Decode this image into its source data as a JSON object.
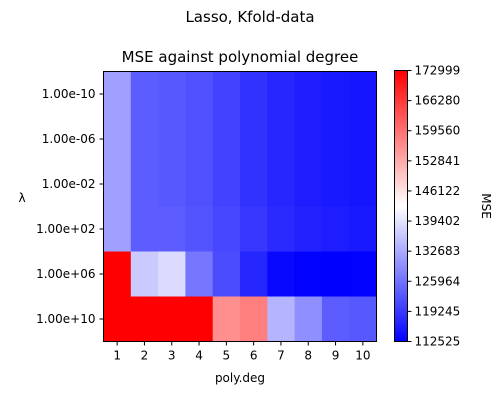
{
  "chart_data": {
    "type": "heatmap",
    "suptitle": "Lasso, Kfold-data",
    "title": "MSE against polynomial degree",
    "xlabel": "poly.deg",
    "ylabel": "λ",
    "x": [
      "1",
      "2",
      "3",
      "4",
      "5",
      "6",
      "7",
      "8",
      "9",
      "10"
    ],
    "y": [
      "1.00e-10",
      "1.00e-06",
      "1.00e-02",
      "1.00e+02",
      "1.00e+06",
      "1.00e+10"
    ],
    "values": [
      [
        131500,
        123500,
        123000,
        122000,
        120500,
        118500,
        117000,
        116000,
        115500,
        115000
      ],
      [
        131500,
        123500,
        123000,
        122000,
        120500,
        118500,
        117000,
        116000,
        115500,
        115000
      ],
      [
        131500,
        123500,
        123000,
        122000,
        120500,
        118500,
        117000,
        116000,
        115500,
        115000
      ],
      [
        131500,
        123500,
        123500,
        122500,
        121000,
        119000,
        117500,
        116500,
        116000,
        115500
      ],
      [
        172999,
        136500,
        138500,
        126500,
        121500,
        117000,
        113500,
        112600,
        112525,
        112700
      ],
      [
        172999,
        172999,
        172999,
        172999,
        156000,
        158000,
        134000,
        129500,
        123500,
        123000
      ]
    ],
    "colorbar": {
      "label": "MSE",
      "vmin": 112525,
      "vmax": 172999,
      "ticks": [
        "172999",
        "166280",
        "159560",
        "152841",
        "146122",
        "139402",
        "132683",
        "125964",
        "119245",
        "112525"
      ],
      "colormap": "bwr",
      "colors": {
        "low": "#0000ff",
        "mid": "#ffffff",
        "high": "#ff0000"
      }
    },
    "grid": false
  }
}
